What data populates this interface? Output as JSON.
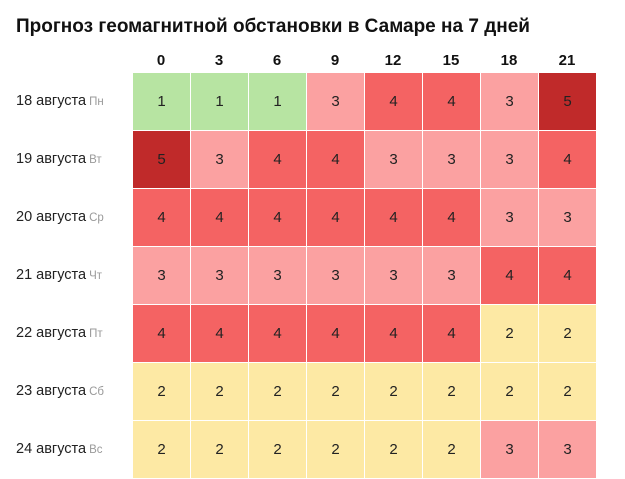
{
  "title": "Прогноз геомагнитной обстановки в Самаре на 7 дней",
  "hours": [
    "0",
    "3",
    "6",
    "9",
    "12",
    "15",
    "18",
    "21"
  ],
  "levels": {
    "1": "#b7e4a2",
    "2": "#fde9a4",
    "3": "#fba1a1",
    "4": "#f46363",
    "5": "#c02a2a"
  },
  "rows": [
    {
      "date": "18 августа",
      "dow": "Пн",
      "values": [
        1,
        1,
        1,
        3,
        4,
        4,
        3,
        5
      ]
    },
    {
      "date": "19 августа",
      "dow": "Вт",
      "values": [
        5,
        3,
        4,
        4,
        3,
        3,
        3,
        4
      ]
    },
    {
      "date": "20 августа",
      "dow": "Ср",
      "values": [
        4,
        4,
        4,
        4,
        4,
        4,
        3,
        3
      ]
    },
    {
      "date": "21 августа",
      "dow": "Чт",
      "values": [
        3,
        3,
        3,
        3,
        3,
        3,
        4,
        4
      ]
    },
    {
      "date": "22 августа",
      "dow": "Пт",
      "values": [
        4,
        4,
        4,
        4,
        4,
        4,
        2,
        2
      ]
    },
    {
      "date": "23 августа",
      "dow": "Сб",
      "values": [
        2,
        2,
        2,
        2,
        2,
        2,
        2,
        2
      ]
    },
    {
      "date": "24 августа",
      "dow": "Вс",
      "values": [
        2,
        2,
        2,
        2,
        2,
        2,
        3,
        3
      ]
    }
  ]
}
